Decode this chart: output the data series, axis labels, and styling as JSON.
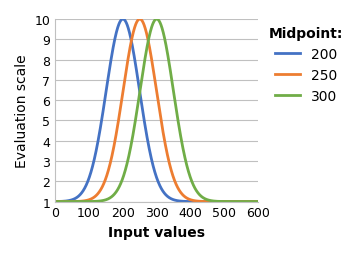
{
  "midpoints": [
    200,
    250,
    300
  ],
  "spread": 70,
  "colors": [
    "#4472C4",
    "#ED7D31",
    "#70AD47"
  ],
  "legend_title": "Midpoint:",
  "legend_labels": [
    "200",
    "250",
    "300"
  ],
  "xlabel": "Input values",
  "ylabel": "Evaluation scale",
  "xlim": [
    0,
    600
  ],
  "ylim": [
    1,
    10
  ],
  "yticks": [
    1,
    2,
    3,
    4,
    5,
    6,
    7,
    8,
    9,
    10
  ],
  "xticks": [
    0,
    100,
    200,
    300,
    400,
    500,
    600
  ],
  "x_start": 0,
  "x_end": 600,
  "peak": 10,
  "baseline": 1,
  "background_color": "#ffffff",
  "grid_color": "#C0C0C0",
  "label_fontsize": 10,
  "legend_fontsize": 10,
  "linewidth": 2.0
}
